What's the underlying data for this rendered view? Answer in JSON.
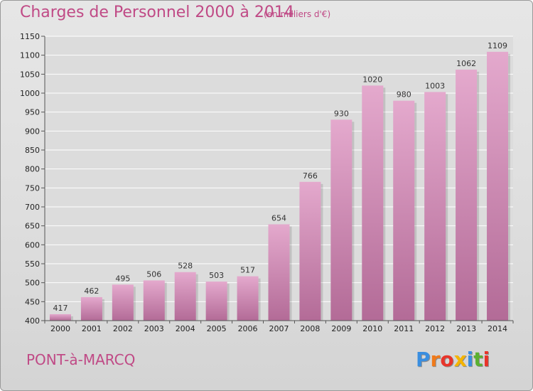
{
  "page": {
    "title": "Charges de Personnel 2000 à 2014",
    "subtitle": "(en milliers d'€)",
    "commune": "PONT-à-MARCQ",
    "logo": "Proxiti"
  },
  "colors": {
    "title": "#c04a86",
    "bar_top": "#e4a9cd",
    "bar_bottom": "#b36b97",
    "grid": "#ffffff",
    "logo": [
      "#3a8ee0",
      "#f07a1a",
      "#e8342a",
      "#f4b400",
      "#3a8ee0",
      "#5bb031",
      "#e8342a"
    ]
  },
  "chart_data": {
    "type": "bar",
    "title": "Charges de Personnel 2000 à 2014",
    "subtitle": "(en milliers d'€)",
    "categories": [
      "2000",
      "2001",
      "2002",
      "2003",
      "2004",
      "2005",
      "2006",
      "2007",
      "2008",
      "2009",
      "2010",
      "2011",
      "2012",
      "2013",
      "2014"
    ],
    "values": [
      417,
      462,
      495,
      506,
      528,
      503,
      517,
      654,
      766,
      930,
      1020,
      980,
      1003,
      1062,
      1109
    ],
    "ylim": [
      400,
      1150
    ],
    "yticks": [
      400,
      450,
      500,
      550,
      600,
      650,
      700,
      750,
      800,
      850,
      900,
      950,
      1000,
      1050,
      1100,
      1150
    ],
    "xlabel": "",
    "ylabel": "",
    "grid": true,
    "legend": "none"
  }
}
